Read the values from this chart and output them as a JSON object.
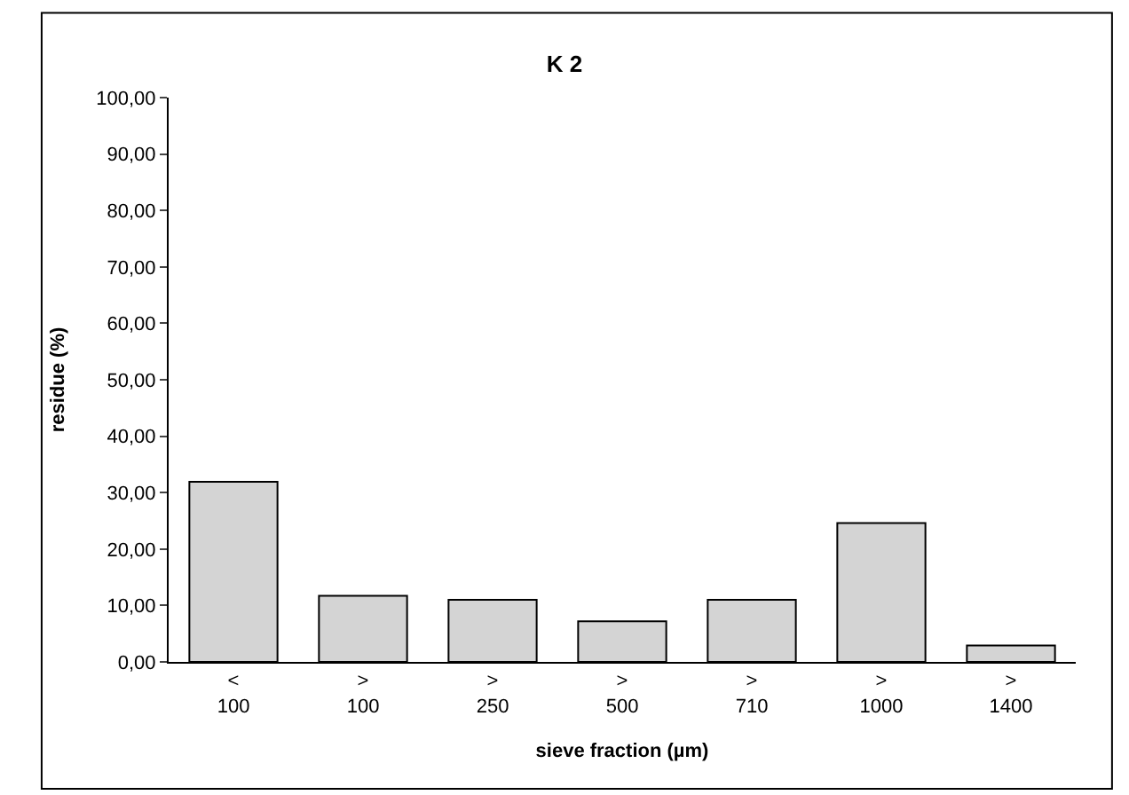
{
  "chart_data": {
    "type": "bar",
    "title": "K 2",
    "xlabel": "sieve fraction (µm)",
    "ylabel": "residue (%)",
    "categories": [
      "<\n100",
      ">\n100",
      ">\n250",
      ">\n500",
      ">\n710",
      ">\n1000",
      ">\n1400"
    ],
    "values": [
      31.9,
      11.7,
      11.0,
      7.2,
      11.0,
      24.6,
      2.9
    ],
    "color": "#d4d4d4",
    "ylim": [
      0,
      100
    ],
    "yticks": [
      {
        "value": 0,
        "label": "0,00"
      },
      {
        "value": 10,
        "label": "10,00"
      },
      {
        "value": 20,
        "label": "20,00"
      },
      {
        "value": 30,
        "label": "30,00"
      },
      {
        "value": 40,
        "label": "40,00"
      },
      {
        "value": 50,
        "label": "50,00"
      },
      {
        "value": 60,
        "label": "60,00"
      },
      {
        "value": 70,
        "label": "70,00"
      },
      {
        "value": 80,
        "label": "80,00"
      },
      {
        "value": 90,
        "label": "90,00"
      },
      {
        "value": 100,
        "label": "100,00"
      }
    ],
    "legend": false
  }
}
